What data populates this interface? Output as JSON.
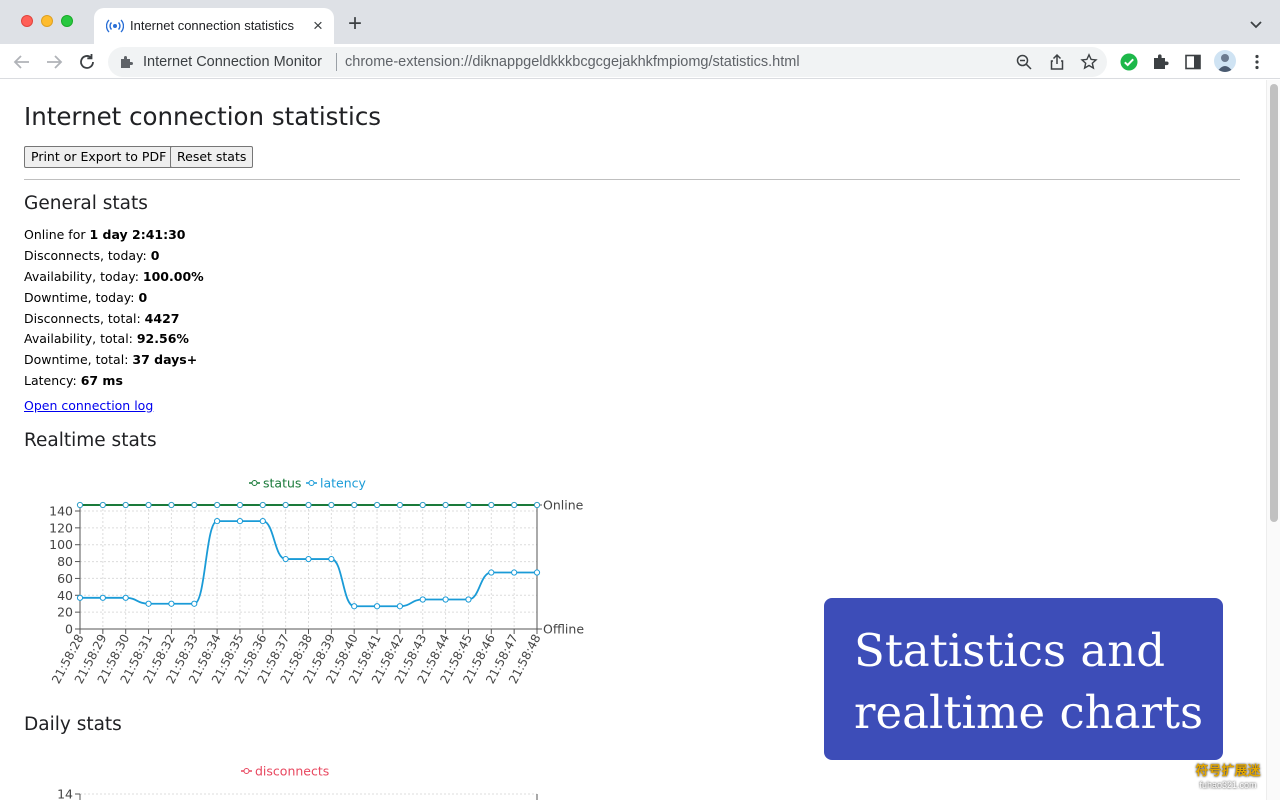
{
  "browser": {
    "tab_title": "Internet connection statistics - Internet Connection Monitor",
    "tab_close": "×",
    "new_tab": "+",
    "omnibox_site": "Internet Connection Monitor",
    "omnibox_url": "chrome-extension://diknappgeldkkkbcgcgejakhkfmpiomg/statistics.html",
    "icons": [
      "back-icon",
      "forward-icon",
      "reload-icon",
      "extension-icon",
      "zoom-icon",
      "share-icon",
      "bookmark-star-icon",
      "connection-ok-icon",
      "puzzle-icon",
      "side-panel-icon",
      "avatar",
      "menu-icon",
      "tab-search-icon"
    ]
  },
  "page": {
    "title": "Internet connection statistics",
    "print_button": "Print or Export to PDF",
    "reset_button": "Reset stats",
    "general_heading": "General stats",
    "stats": [
      {
        "label": "Online for ",
        "value": "1 day 2:41:30"
      },
      {
        "label": "Disconnects, today: ",
        "value": "0"
      },
      {
        "label": "Availability, today: ",
        "value": "100.00%"
      },
      {
        "label": "Downtime, today: ",
        "value": "0"
      },
      {
        "label": "Disconnects, total: ",
        "value": "4427"
      },
      {
        "label": "Availability, total: ",
        "value": "92.56%"
      },
      {
        "label": "Downtime, total: ",
        "value": "37 days+"
      },
      {
        "label": "Latency: ",
        "value": "67 ms"
      }
    ],
    "log_link": "Open connection log",
    "realtime_heading": "Realtime stats",
    "daily_heading": "Daily stats"
  },
  "chart_data": [
    {
      "type": "line",
      "categories": [
        "21:58:28",
        "21:58:29",
        "21:58:30",
        "21:58:31",
        "21:58:32",
        "21:58:33",
        "21:58:34",
        "21:58:35",
        "21:58:36",
        "21:58:37",
        "21:58:38",
        "21:58:39",
        "21:58:40",
        "21:58:41",
        "21:58:42",
        "21:58:43",
        "21:58:44",
        "21:58:45",
        "21:58:46",
        "21:58:47",
        "21:58:48"
      ],
      "ylim": [
        0,
        140
      ],
      "yticks": [
        0,
        20,
        40,
        60,
        80,
        100,
        120,
        140
      ],
      "right_axis_labels": {
        "top": "Online",
        "bottom": "Offline"
      },
      "grid": true,
      "legend_position": "top",
      "series": [
        {
          "name": "status",
          "color": "#1a7a3a",
          "values": [
            1,
            1,
            1,
            1,
            1,
            1,
            1,
            1,
            1,
            1,
            1,
            1,
            1,
            1,
            1,
            1,
            1,
            1,
            1,
            1,
            1
          ]
        },
        {
          "name": "latency",
          "color": "#1a9bd7",
          "values": [
            37,
            37,
            37,
            30,
            30,
            30,
            128,
            128,
            128,
            83,
            83,
            83,
            27,
            27,
            27,
            35,
            35,
            35,
            67,
            67,
            67
          ]
        }
      ]
    },
    {
      "type": "line",
      "ytick_visible": [
        14
      ],
      "legend_position": "top",
      "series": [
        {
          "name": "disconnects",
          "color": "#e8475f",
          "values": []
        }
      ]
    }
  ],
  "overlay": {
    "promo_line1": "Statistics and",
    "promo_line2": "realtime charts",
    "watermark_cn": "符号扩展迷",
    "watermark_url": "fuhao321.com",
    "promo_color": "#3d4db8"
  }
}
